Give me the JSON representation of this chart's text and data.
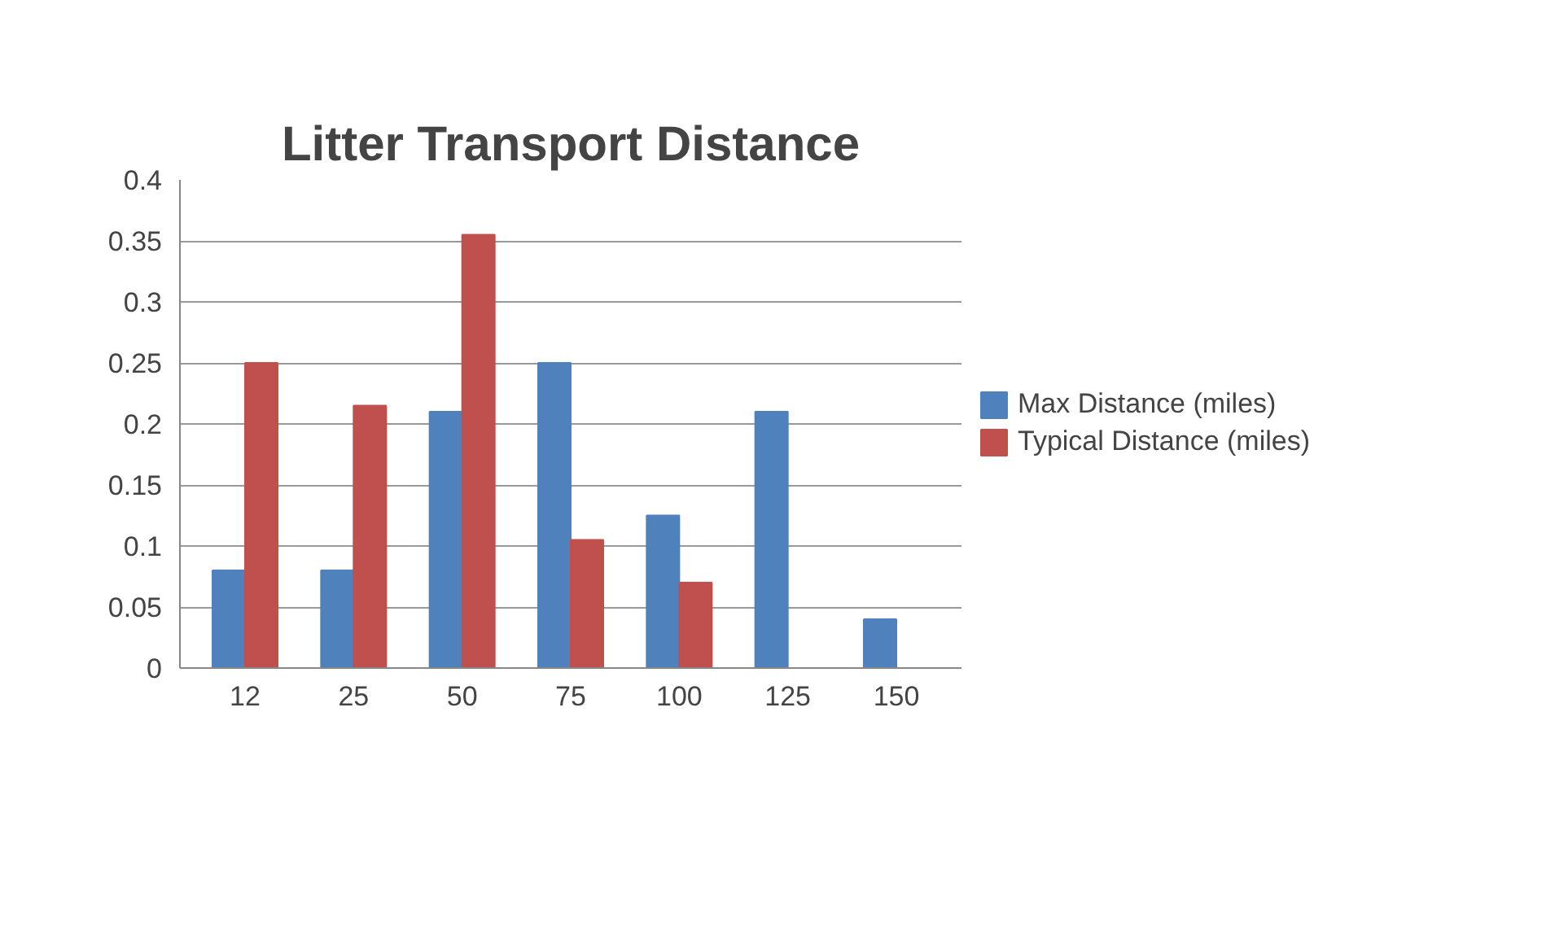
{
  "chart_data": {
    "type": "bar",
    "title": "Litter Transport Distance",
    "categories": [
      "12",
      "25",
      "50",
      "75",
      "100",
      "125",
      "150"
    ],
    "series": [
      {
        "name": "Max Distance (miles)",
        "color": "#4f81bd",
        "values": [
          0.08,
          0.08,
          0.21,
          0.25,
          0.125,
          0.21,
          0.04
        ]
      },
      {
        "name": "Typical Distance (miles)",
        "color": "#c0504d",
        "values": [
          0.25,
          0.215,
          0.355,
          0.105,
          0.07,
          0,
          0
        ]
      }
    ],
    "ylim": [
      0,
      0.4
    ],
    "yticks": [
      0,
      0.05,
      0.1,
      0.15,
      0.2,
      0.25,
      0.3,
      0.35,
      0.4
    ],
    "grid": "y",
    "legend": "right"
  }
}
